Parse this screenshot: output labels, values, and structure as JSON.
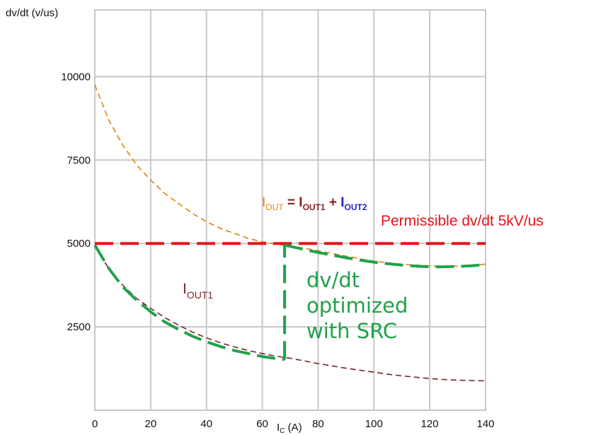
{
  "chart_data": {
    "type": "line",
    "ylabel": "dv/dt (v/us)",
    "xlabel_main": "I",
    "xlabel_sub": "C",
    "xlabel_unit": " (A)",
    "xlim": [
      0,
      140
    ],
    "ylim": [
      0,
      12000
    ],
    "x_ticks": [
      0,
      20,
      40,
      60,
      80,
      100,
      120,
      140
    ],
    "y_ticks": [
      2500,
      5000,
      7500,
      10000
    ],
    "grid": true,
    "series": [
      {
        "color": "#e0820e",
        "style": "dashed-thin",
        "x": [
          0,
          5,
          10,
          15,
          20,
          25,
          30,
          35,
          40,
          45,
          50,
          55,
          60,
          65,
          70,
          75,
          80,
          85,
          90,
          95,
          100,
          105,
          110,
          115,
          120,
          125,
          130,
          135,
          140
        ],
        "y": [
          9750,
          8700,
          7950,
          7350,
          6900,
          6500,
          6200,
          5900,
          5650,
          5450,
          5300,
          5150,
          5050,
          4980,
          4920,
          4860,
          4780,
          4700,
          4620,
          4540,
          4470,
          4420,
          4380,
          4350,
          4330,
          4320,
          4320,
          4340,
          4380
        ]
      },
      {
        "color": "#7a2428",
        "style": "dashed-thin",
        "x": [
          0,
          5,
          10,
          15,
          20,
          25,
          30,
          35,
          40,
          45,
          50,
          55,
          60,
          65,
          70,
          75,
          80,
          85,
          90,
          95,
          100,
          105,
          110,
          115,
          120,
          125,
          130,
          135,
          140
        ],
        "y": [
          4900,
          4250,
          3750,
          3350,
          3050,
          2780,
          2550,
          2340,
          2170,
          2020,
          1900,
          1790,
          1700,
          1620,
          1560,
          1480,
          1400,
          1330,
          1260,
          1200,
          1140,
          1080,
          1030,
          990,
          950,
          920,
          900,
          890,
          880
        ]
      },
      {
        "color": "#e8121a",
        "style": "dashed-thick",
        "x": [
          0,
          140
        ],
        "y": [
          5000,
          5000
        ]
      },
      {
        "color": "#1fa24a",
        "style": "dashed-thick",
        "x": [
          0,
          5,
          10,
          15,
          20,
          25,
          30,
          35,
          40,
          45,
          50,
          55,
          60,
          65,
          68
        ],
        "y": [
          4950,
          4250,
          3700,
          3300,
          2950,
          2650,
          2420,
          2220,
          2050,
          1910,
          1790,
          1700,
          1610,
          1550,
          1520
        ]
      },
      {
        "color": "#1fa24a",
        "style": "dashed-thick",
        "x": [
          68,
          68
        ],
        "y": [
          1520,
          4950
        ]
      },
      {
        "color": "#1fa24a",
        "style": "dashed-thick",
        "x": [
          68,
          75,
          80,
          85,
          90,
          95,
          100,
          105,
          110,
          115,
          120,
          125,
          130,
          135,
          140
        ],
        "y": [
          4950,
          4820,
          4730,
          4650,
          4570,
          4500,
          4440,
          4390,
          4350,
          4320,
          4300,
          4300,
          4310,
          4330,
          4370
        ]
      }
    ],
    "annotations": {
      "iout_label": {
        "i": "I",
        "out_sub": "OUT",
        "eq": " = ",
        "i1": "I",
        "out1_sub": "OUT1",
        "plus": " + ",
        "i2": "I",
        "out2_sub": "OUT2",
        "color_iout": "#e0820e",
        "color_iout1": "#8b1d22",
        "color_iout2": "#2020d0"
      },
      "permissible": "Permissible dv/dt 5kV/us",
      "iout1_label": {
        "i": "I",
        "sub": "OUT1"
      },
      "optimized_lines": [
        "dv/dt",
        "optimized",
        "with SRC"
      ]
    },
    "colors": {
      "grid": "#c8c8c8",
      "axis": "#9a9a9a",
      "orange": "#e0820e",
      "maroon": "#7a2428",
      "red": "#e8121a",
      "green": "#1fa24a"
    }
  }
}
